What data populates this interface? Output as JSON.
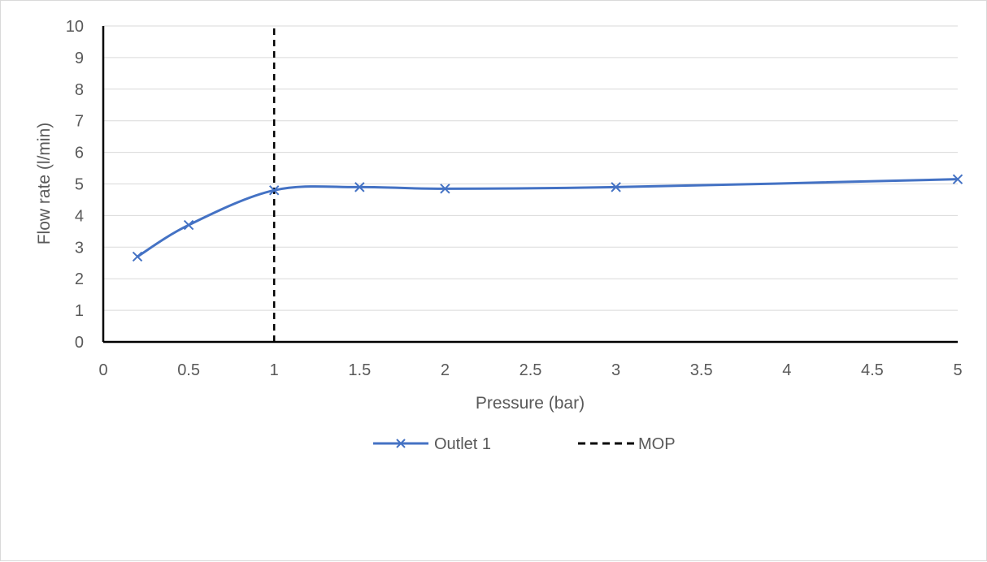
{
  "chart_data": {
    "type": "line",
    "title": "",
    "xlabel": "Pressure (bar)",
    "ylabel": "Flow rate (l/min)",
    "xlim": [
      0,
      5
    ],
    "ylim": [
      0,
      10
    ],
    "xticks": [
      "0",
      "0.5",
      "1",
      "1.5",
      "2",
      "2.5",
      "3",
      "3.5",
      "4",
      "4.5",
      "5"
    ],
    "yticks": [
      "0",
      "1",
      "2",
      "3",
      "4",
      "5",
      "6",
      "7",
      "8",
      "9",
      "10"
    ],
    "grid": "horizontal",
    "legend_position": "bottom",
    "series": [
      {
        "name": "Outlet 1",
        "color": "#4472c4",
        "marker": "x",
        "smooth": true,
        "x": [
          0.2,
          0.5,
          1,
          1.5,
          2,
          3,
          5
        ],
        "y": [
          2.7,
          3.7,
          4.8,
          4.9,
          4.85,
          4.9,
          5.15
        ]
      },
      {
        "name": "MOP",
        "color": "#000000",
        "style": "dashed",
        "x": [
          1,
          1
        ],
        "y": [
          0,
          10
        ]
      }
    ]
  }
}
